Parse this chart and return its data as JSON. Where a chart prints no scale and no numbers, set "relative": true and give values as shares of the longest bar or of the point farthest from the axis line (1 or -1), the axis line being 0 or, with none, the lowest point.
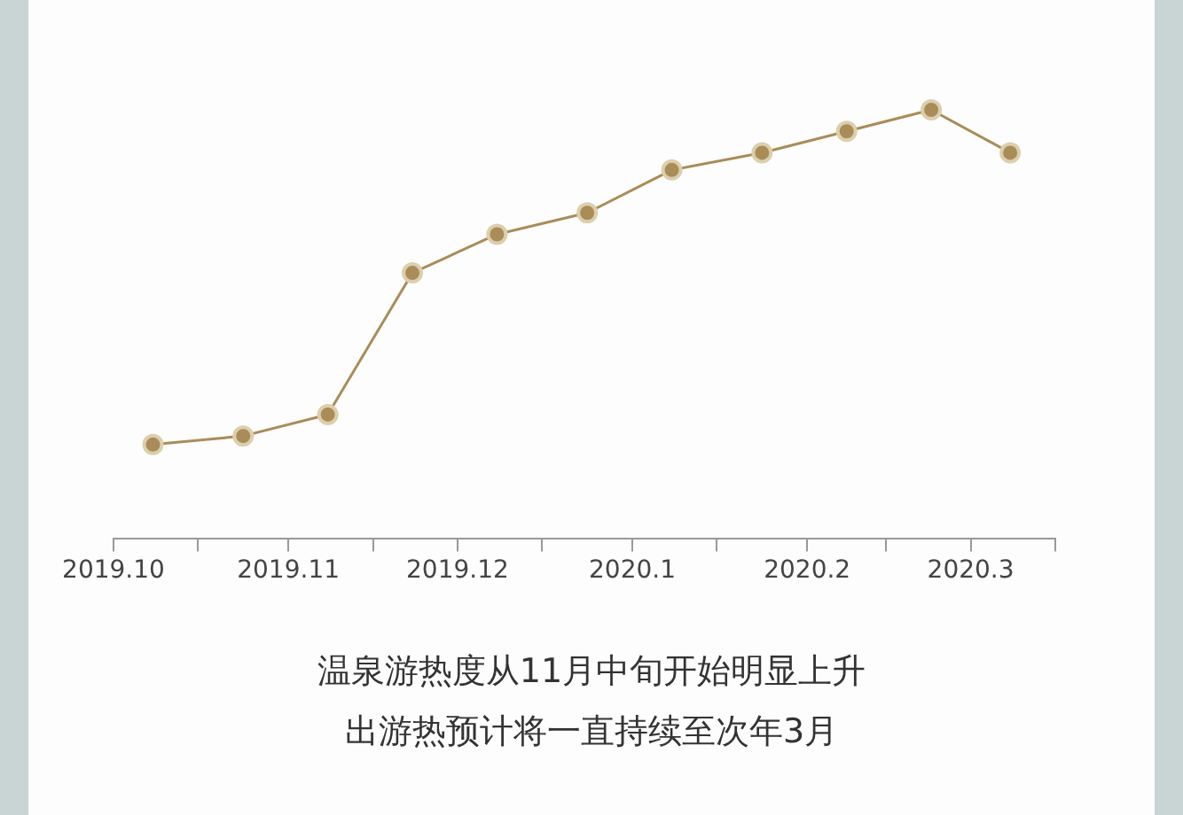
{
  "chart_data": {
    "type": "line",
    "relative": true,
    "marker": "circle",
    "x": [
      "2019-10-08",
      "2019-10-24",
      "2019-11-08",
      "2019-11-23",
      "2019-12-08",
      "2019-12-24",
      "2020-01-08",
      "2020-01-24",
      "2020-02-08",
      "2020-02-23",
      "2020-03-08"
    ],
    "xlim": [
      "2019-10-01",
      "2020-03-16"
    ],
    "xticks": [
      {
        "value": "2019-10-01",
        "label": "2019.10"
      },
      {
        "value": "2019-10-16",
        "label": null
      },
      {
        "value": "2019-11-01",
        "label": "2019.11"
      },
      {
        "value": "2019-11-16",
        "label": null
      },
      {
        "value": "2019-12-01",
        "label": "2019.12"
      },
      {
        "value": "2019-12-16",
        "label": null
      },
      {
        "value": "2020-01-01",
        "label": "2020.1"
      },
      {
        "value": "2020-01-16",
        "label": null
      },
      {
        "value": "2020-02-01",
        "label": "2020.2"
      },
      {
        "value": "2020-02-15",
        "label": null
      },
      {
        "value": "2020-03-01",
        "label": "2020.3"
      },
      {
        "value": "2020-03-16",
        "label": null
      }
    ],
    "series": [
      {
        "color": "#a98c57",
        "values": [
          0.22,
          0.24,
          0.29,
          0.62,
          0.71,
          0.76,
          0.86,
          0.9,
          0.95,
          1,
          0.9
        ]
      }
    ],
    "annotations": [
      "温泉游热度从11月中旬开始明显上升",
      "出游热预计将一直持续至次年3月"
    ]
  }
}
